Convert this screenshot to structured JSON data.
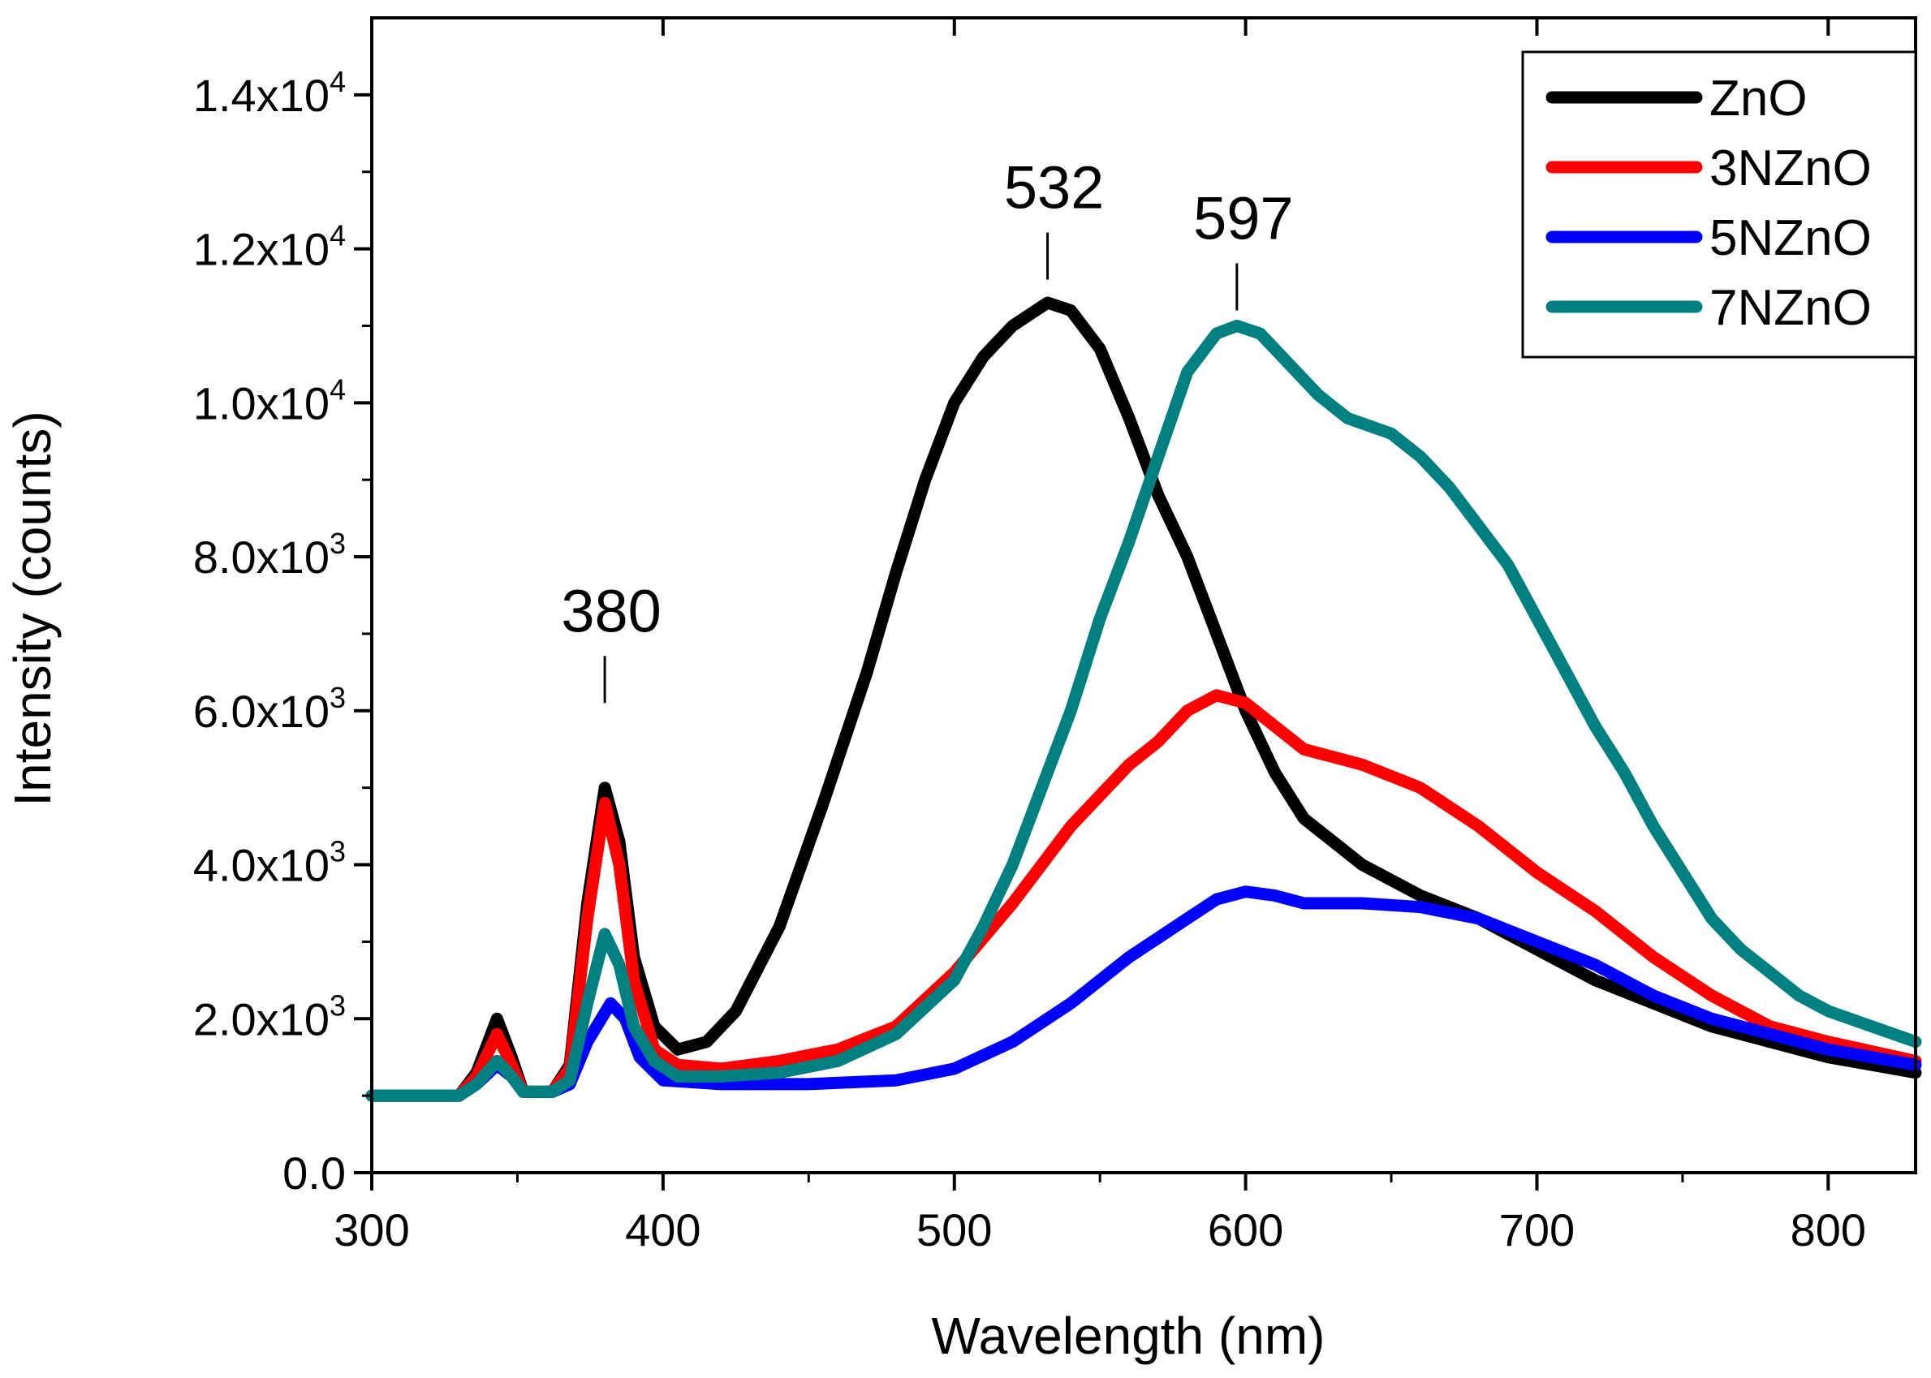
{
  "chart_data": {
    "type": "line",
    "title": "",
    "xlabel": "Wavelength (nm)",
    "ylabel": "Intensity (counts)",
    "xlim": [
      300,
      830
    ],
    "ylim": [
      0,
      15000
    ],
    "grid": false,
    "legend_position": "top-right",
    "x_ticks": [
      {
        "value": 300,
        "label": "300"
      },
      {
        "value": 400,
        "label": "400"
      },
      {
        "value": 500,
        "label": "500"
      },
      {
        "value": 600,
        "label": "600"
      },
      {
        "value": 700,
        "label": "700"
      },
      {
        "value": 800,
        "label": "800"
      }
    ],
    "y_ticks": [
      {
        "value": 0,
        "mantissa": "0.0",
        "exp": ""
      },
      {
        "value": 2000,
        "mantissa": "2.0x10",
        "exp": "3"
      },
      {
        "value": 4000,
        "mantissa": "4.0x10",
        "exp": "3"
      },
      {
        "value": 6000,
        "mantissa": "6.0x10",
        "exp": "3"
      },
      {
        "value": 8000,
        "mantissa": "8.0x10",
        "exp": "3"
      },
      {
        "value": 10000,
        "mantissa": "1.0x10",
        "exp": "4"
      },
      {
        "value": 12000,
        "mantissa": "1.2x10",
        "exp": "4"
      },
      {
        "value": 14000,
        "mantissa": "1.4x10",
        "exp": "4"
      }
    ],
    "annotations": [
      {
        "text": "380",
        "x": 380,
        "y_tip": 6100
      },
      {
        "text": "532",
        "x": 532,
        "y_tip": 11600
      },
      {
        "text": "597",
        "x": 597,
        "y_tip": 11200
      }
    ],
    "series": [
      {
        "name": "ZnO",
        "color": "#000000",
        "points": [
          [
            300,
            1000
          ],
          [
            330,
            1000
          ],
          [
            336,
            1300
          ],
          [
            343,
            2000
          ],
          [
            348,
            1500
          ],
          [
            352,
            1050
          ],
          [
            362,
            1050
          ],
          [
            368,
            1400
          ],
          [
            374,
            3500
          ],
          [
            380,
            5000
          ],
          [
            385,
            4300
          ],
          [
            390,
            2800
          ],
          [
            397,
            1900
          ],
          [
            405,
            1600
          ],
          [
            415,
            1700
          ],
          [
            425,
            2100
          ],
          [
            440,
            3200
          ],
          [
            455,
            4800
          ],
          [
            470,
            6500
          ],
          [
            480,
            7800
          ],
          [
            490,
            9000
          ],
          [
            500,
            10000
          ],
          [
            510,
            10600
          ],
          [
            520,
            11000
          ],
          [
            532,
            11300
          ],
          [
            540,
            11200
          ],
          [
            550,
            10700
          ],
          [
            560,
            9800
          ],
          [
            570,
            8800
          ],
          [
            580,
            8000
          ],
          [
            590,
            7000
          ],
          [
            600,
            6000
          ],
          [
            610,
            5200
          ],
          [
            620,
            4600
          ],
          [
            640,
            4000
          ],
          [
            660,
            3600
          ],
          [
            680,
            3300
          ],
          [
            700,
            2900
          ],
          [
            720,
            2500
          ],
          [
            740,
            2200
          ],
          [
            760,
            1900
          ],
          [
            780,
            1700
          ],
          [
            800,
            1500
          ],
          [
            830,
            1300
          ]
        ]
      },
      {
        "name": "3NZnO",
        "color": "#ff0000",
        "points": [
          [
            300,
            1000
          ],
          [
            330,
            1000
          ],
          [
            336,
            1250
          ],
          [
            343,
            1800
          ],
          [
            348,
            1400
          ],
          [
            352,
            1050
          ],
          [
            362,
            1050
          ],
          [
            368,
            1350
          ],
          [
            374,
            3300
          ],
          [
            380,
            4800
          ],
          [
            385,
            4000
          ],
          [
            390,
            2500
          ],
          [
            397,
            1600
          ],
          [
            405,
            1400
          ],
          [
            420,
            1350
          ],
          [
            440,
            1450
          ],
          [
            460,
            1600
          ],
          [
            480,
            1900
          ],
          [
            500,
            2600
          ],
          [
            520,
            3500
          ],
          [
            540,
            4500
          ],
          [
            560,
            5300
          ],
          [
            570,
            5600
          ],
          [
            580,
            6000
          ],
          [
            590,
            6200
          ],
          [
            600,
            6100
          ],
          [
            610,
            5800
          ],
          [
            620,
            5500
          ],
          [
            640,
            5300
          ],
          [
            660,
            5000
          ],
          [
            680,
            4500
          ],
          [
            700,
            3900
          ],
          [
            720,
            3400
          ],
          [
            740,
            2800
          ],
          [
            760,
            2300
          ],
          [
            780,
            1900
          ],
          [
            800,
            1700
          ],
          [
            830,
            1450
          ]
        ]
      },
      {
        "name": "5NZnO",
        "color": "#0000ff",
        "points": [
          [
            300,
            1000
          ],
          [
            330,
            1000
          ],
          [
            336,
            1150
          ],
          [
            343,
            1400
          ],
          [
            348,
            1250
          ],
          [
            352,
            1050
          ],
          [
            362,
            1050
          ],
          [
            368,
            1150
          ],
          [
            374,
            1700
          ],
          [
            382,
            2200
          ],
          [
            387,
            2000
          ],
          [
            392,
            1500
          ],
          [
            400,
            1200
          ],
          [
            420,
            1150
          ],
          [
            450,
            1150
          ],
          [
            480,
            1200
          ],
          [
            500,
            1350
          ],
          [
            520,
            1700
          ],
          [
            540,
            2200
          ],
          [
            560,
            2800
          ],
          [
            580,
            3300
          ],
          [
            590,
            3550
          ],
          [
            600,
            3650
          ],
          [
            610,
            3600
          ],
          [
            620,
            3500
          ],
          [
            640,
            3500
          ],
          [
            660,
            3450
          ],
          [
            680,
            3300
          ],
          [
            700,
            3000
          ],
          [
            720,
            2700
          ],
          [
            740,
            2300
          ],
          [
            760,
            2000
          ],
          [
            780,
            1800
          ],
          [
            800,
            1600
          ],
          [
            830,
            1400
          ]
        ]
      },
      {
        "name": "7NZnO",
        "color": "#008080",
        "points": [
          [
            300,
            1000
          ],
          [
            330,
            1000
          ],
          [
            336,
            1150
          ],
          [
            343,
            1450
          ],
          [
            348,
            1250
          ],
          [
            352,
            1050
          ],
          [
            362,
            1050
          ],
          [
            368,
            1200
          ],
          [
            374,
            2200
          ],
          [
            380,
            3100
          ],
          [
            385,
            2700
          ],
          [
            390,
            1900
          ],
          [
            397,
            1450
          ],
          [
            405,
            1250
          ],
          [
            420,
            1250
          ],
          [
            440,
            1300
          ],
          [
            460,
            1450
          ],
          [
            480,
            1800
          ],
          [
            500,
            2500
          ],
          [
            510,
            3200
          ],
          [
            520,
            4000
          ],
          [
            530,
            5000
          ],
          [
            540,
            6000
          ],
          [
            550,
            7200
          ],
          [
            560,
            8200
          ],
          [
            570,
            9300
          ],
          [
            580,
            10400
          ],
          [
            590,
            10900
          ],
          [
            597,
            11000
          ],
          [
            605,
            10900
          ],
          [
            615,
            10500
          ],
          [
            625,
            10100
          ],
          [
            635,
            9800
          ],
          [
            650,
            9600
          ],
          [
            660,
            9300
          ],
          [
            670,
            8900
          ],
          [
            680,
            8400
          ],
          [
            690,
            7900
          ],
          [
            700,
            7200
          ],
          [
            710,
            6500
          ],
          [
            720,
            5800
          ],
          [
            730,
            5200
          ],
          [
            740,
            4500
          ],
          [
            750,
            3900
          ],
          [
            760,
            3300
          ],
          [
            770,
            2900
          ],
          [
            780,
            2600
          ],
          [
            790,
            2300
          ],
          [
            800,
            2100
          ],
          [
            815,
            1900
          ],
          [
            830,
            1700
          ]
        ]
      }
    ]
  }
}
